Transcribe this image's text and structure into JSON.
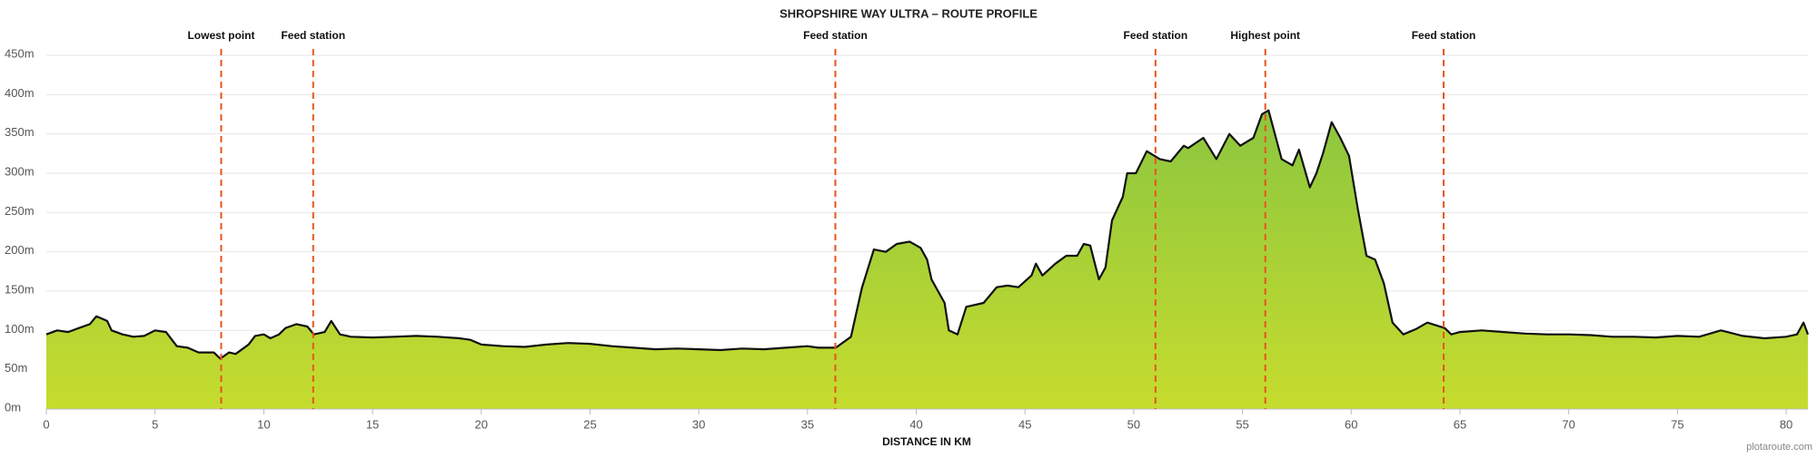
{
  "chart_data": {
    "type": "area",
    "title": "SHROPSHIRE WAY ULTRA – ROUTE PROFILE",
    "x_label": "DISTANCE IN KM",
    "credit": "plotaroute.com",
    "line_color": "#111111",
    "fill_colors": [
      "#8cc63f",
      "#c6dc2e"
    ],
    "grid": true,
    "xlim": [
      0,
      81
    ],
    "ylim": [
      0,
      450
    ],
    "xticks": [
      0,
      5,
      10,
      15,
      20,
      25,
      30,
      35,
      40,
      45,
      50,
      55,
      60,
      65,
      70,
      75,
      80
    ],
    "yticks": [
      {
        "value": 0,
        "label": "0m"
      },
      {
        "value": 50,
        "label": "50m"
      },
      {
        "value": 100,
        "label": "100m"
      },
      {
        "value": 150,
        "label": "150m"
      },
      {
        "value": 200,
        "label": "200m"
      },
      {
        "value": 250,
        "label": "250m"
      },
      {
        "value": 300,
        "label": "300m"
      },
      {
        "value": 350,
        "label": "350m"
      },
      {
        "value": 400,
        "label": "400m"
      },
      {
        "value": 450,
        "label": "450m"
      }
    ],
    "annotations": [
      {
        "x": 8.04,
        "label": "Lowest point",
        "color": "#e8541e"
      },
      {
        "x": 12.27,
        "label": "Feed station",
        "color": "#e8541e"
      },
      {
        "x": 36.28,
        "label": "Feed station",
        "color": "#e8541e"
      },
      {
        "x": 51.0,
        "label": "Feed station",
        "color": "#e8541e"
      },
      {
        "x": 56.05,
        "label": "Highest point",
        "color": "#e8541e"
      },
      {
        "x": 64.25,
        "label": "Feed station",
        "color": "#e8541e"
      }
    ],
    "x": [
      0,
      0.5,
      1,
      1.5,
      2,
      2.3,
      2.8,
      3,
      3.5,
      4,
      4.5,
      5,
      5.5,
      6,
      6.5,
      7,
      7.7,
      8.0,
      8.4,
      8.7,
      9.3,
      9.6,
      10,
      10.3,
      10.7,
      11,
      11.5,
      12,
      12.3,
      12.8,
      13.1,
      13.5,
      14,
      15,
      16,
      17,
      18,
      19,
      19.5,
      20,
      21,
      22,
      23,
      24,
      25,
      26,
      27,
      28,
      29,
      30,
      31,
      32,
      33,
      34,
      35,
      35.5,
      36.3,
      37.0,
      37.5,
      38.05,
      38.6,
      39.1,
      39.7,
      40.2,
      40.5,
      40.7,
      41.3,
      41.5,
      41.9,
      42.3,
      43.1,
      43.7,
      44.2,
      44.7,
      45.3,
      45.5,
      45.8,
      46.4,
      46.9,
      47.4,
      47.7,
      48.0,
      48.4,
      48.7,
      49.0,
      49.5,
      49.7,
      50.1,
      50.6,
      51.2,
      51.7,
      52.3,
      52.5,
      53.2,
      53.8,
      54.4,
      54.9,
      55.5,
      55.9,
      56.2,
      56.8,
      57.3,
      57.6,
      58.1,
      58.4,
      58.7,
      59.1,
      59.5,
      59.9,
      60.3,
      60.7,
      61.1,
      61.5,
      61.9,
      62.4,
      63.0,
      63.5,
      64.3,
      64.6,
      65,
      66,
      67,
      68,
      69,
      70,
      71,
      72,
      73,
      74,
      75,
      76,
      77,
      78,
      79,
      80,
      80.5,
      80.8,
      81
    ],
    "values": [
      95,
      100,
      98,
      103,
      108,
      118,
      112,
      100,
      95,
      92,
      93,
      100,
      98,
      80,
      78,
      72,
      72,
      64,
      72,
      70,
      82,
      93,
      95,
      90,
      95,
      103,
      108,
      105,
      95,
      98,
      112,
      95,
      92,
      91,
      92,
      93,
      92,
      90,
      88,
      82,
      80,
      79,
      82,
      84,
      83,
      80,
      78,
      76,
      77,
      76,
      75,
      77,
      76,
      78,
      80,
      78,
      78,
      92,
      154,
      203,
      200,
      210,
      213,
      205,
      190,
      165,
      135,
      100,
      95,
      130,
      135,
      155,
      157,
      155,
      170,
      185,
      170,
      185,
      195,
      195,
      210,
      208,
      165,
      180,
      240,
      270,
      300,
      300,
      328,
      318,
      315,
      335,
      332,
      345,
      318,
      350,
      335,
      345,
      375,
      380,
      318,
      310,
      330,
      282,
      300,
      325,
      365,
      345,
      322,
      255,
      195,
      190,
      160,
      110,
      95,
      102,
      110,
      103,
      95,
      98,
      100,
      98,
      96,
      95,
      95,
      94,
      92,
      92,
      91,
      93,
      92,
      100,
      93,
      90,
      92,
      95,
      110,
      95
    ]
  }
}
